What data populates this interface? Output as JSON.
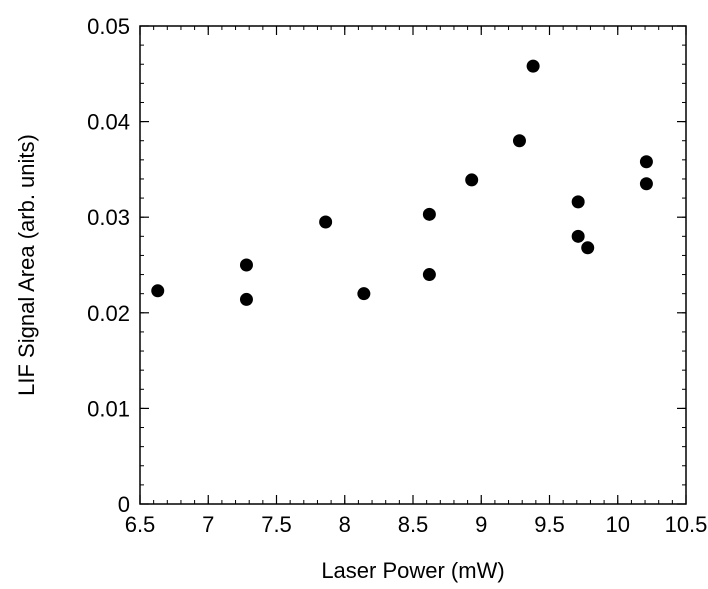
{
  "chart_data": {
    "type": "scatter",
    "title": "",
    "xlabel": "Laser Power (mW)",
    "ylabel": "LIF Signal Area (arb. units)",
    "xlim": [
      6.5,
      10.5
    ],
    "ylim": [
      0,
      0.05
    ],
    "x_ticks": [
      6.5,
      7,
      7.5,
      8,
      8.5,
      9,
      9.5,
      10,
      10.5
    ],
    "x_tick_labels": [
      "6.5",
      "7",
      "7.5",
      "8",
      "8.5",
      "9",
      "9.5",
      "10",
      "10.5"
    ],
    "y_ticks": [
      0,
      0.01,
      0.02,
      0.03,
      0.04,
      0.05
    ],
    "y_tick_labels": [
      "0",
      "0.01",
      "0.02",
      "0.03",
      "0.04",
      "0.05"
    ],
    "grid": false,
    "marker_color": "#000000",
    "series": [
      {
        "x": [
          6.63,
          7.28,
          7.28,
          7.86,
          8.14,
          8.62,
          8.62,
          8.93,
          9.28,
          9.38,
          9.71,
          9.71,
          9.78,
          10.21,
          10.21
        ],
        "y": [
          0.0223,
          0.025,
          0.0214,
          0.0295,
          0.022,
          0.0303,
          0.024,
          0.0339,
          0.038,
          0.0458,
          0.0316,
          0.028,
          0.0268,
          0.0358,
          0.0335
        ]
      }
    ]
  }
}
